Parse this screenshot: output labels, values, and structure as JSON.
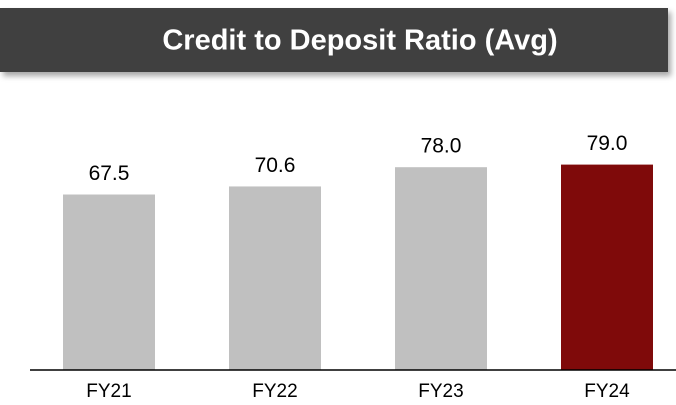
{
  "chart_data": {
    "type": "bar",
    "title": "Credit to Deposit Ratio (Avg)",
    "categories": [
      "FY21",
      "FY22",
      "FY23",
      "FY24"
    ],
    "values": [
      67.5,
      70.6,
      78.0,
      79.0
    ],
    "value_labels": [
      "67.5",
      "70.6",
      "78.0",
      "79.0"
    ],
    "colors": [
      "#c0c0c0",
      "#c0c0c0",
      "#c0c0c0",
      "#7f0a0a"
    ],
    "ylim": [
      0,
      80
    ]
  }
}
